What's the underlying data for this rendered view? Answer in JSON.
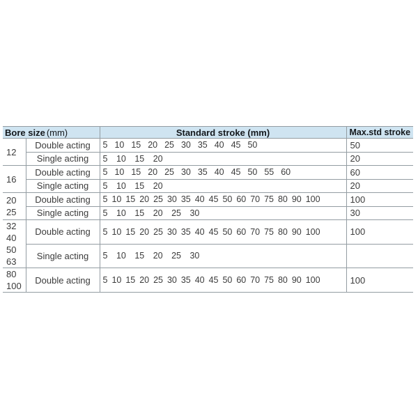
{
  "table": {
    "header": {
      "bore_label": "Bore size",
      "bore_unit": "(mm)",
      "stroke_label": "Standard stroke (mm)",
      "max_label": "Max.std stroke"
    },
    "colors": {
      "header_bg": "#cfe4f1",
      "border": "#939ca2",
      "header_text": "#14181c",
      "body_text": "#3b3b3b"
    },
    "groups": [
      {
        "bores": [
          "12"
        ],
        "rows": [
          {
            "acting": "Double acting",
            "strokes": [
              5,
              10,
              15,
              20,
              25,
              30,
              35,
              40,
              45,
              50
            ],
            "max": "50"
          },
          {
            "acting": "Single acting",
            "strokes": [
              5,
              10,
              15,
              20
            ],
            "max": "20"
          }
        ]
      },
      {
        "bores": [
          "16"
        ],
        "rows": [
          {
            "acting": "Double acting",
            "strokes": [
              5,
              10,
              15,
              20,
              25,
              30,
              35,
              40,
              45,
              50,
              55,
              60
            ],
            "max": "60"
          },
          {
            "acting": "Single acting",
            "strokes": [
              5,
              10,
              15,
              20
            ],
            "max": "20"
          }
        ]
      },
      {
        "bores": [
          "20",
          "25"
        ],
        "rows": [
          {
            "acting": "Double acting",
            "strokes": [
              5,
              10,
              15,
              20,
              25,
              30,
              35,
              40,
              45,
              50,
              60,
              70,
              75,
              80,
              90,
              100
            ],
            "max": "100"
          },
          {
            "acting": "Single acting",
            "strokes": [
              5,
              10,
              15,
              20,
              25,
              30
            ],
            "max": "30"
          }
        ]
      },
      {
        "bores": [
          "32",
          "40",
          "50",
          "63"
        ],
        "rows": [
          {
            "acting": "Double acting",
            "strokes": [
              5,
              10,
              15,
              20,
              25,
              30,
              35,
              40,
              45,
              50,
              60,
              70,
              75,
              80,
              90,
              100
            ],
            "max": "100"
          },
          {
            "acting": "Single acting",
            "strokes": [
              5,
              10,
              15,
              20,
              25,
              30
            ],
            "max": ""
          }
        ]
      },
      {
        "bores": [
          "80",
          "100"
        ],
        "rows": [
          {
            "acting": "Double acting",
            "strokes": [
              5,
              10,
              15,
              20,
              25,
              30,
              35,
              40,
              45,
              50,
              60,
              70,
              75,
              80,
              90,
              100
            ],
            "max": "100"
          }
        ]
      }
    ]
  }
}
